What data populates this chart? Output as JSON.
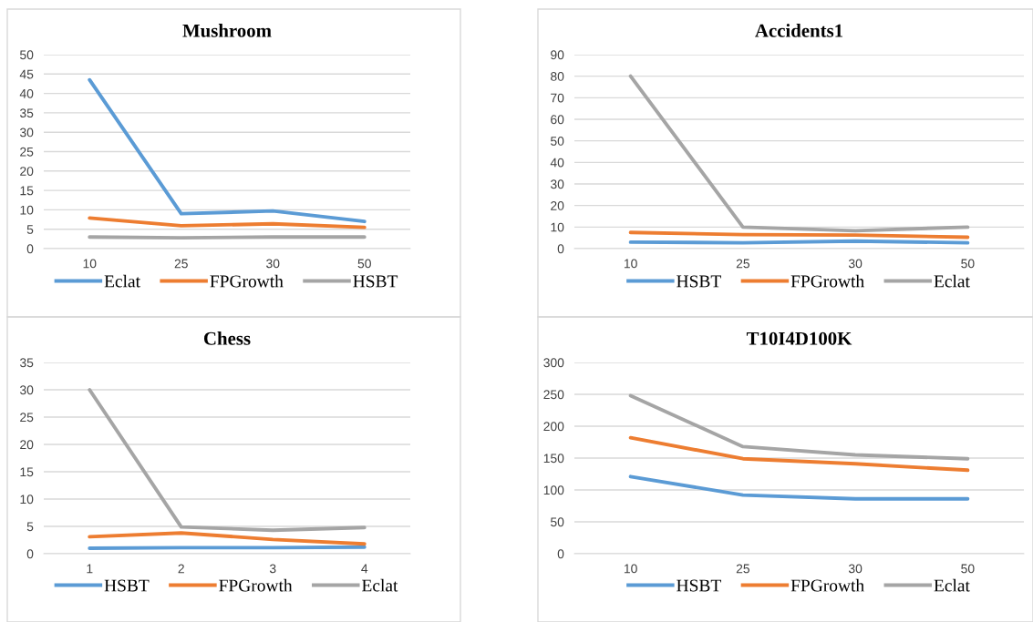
{
  "chart_data": [
    {
      "type": "line",
      "title": "Mushroom",
      "categories": [
        "10",
        "25",
        "30",
        "50"
      ],
      "ylim": [
        0,
        50
      ],
      "yticks": [
        0,
        5,
        10,
        15,
        20,
        25,
        30,
        35,
        40,
        45,
        50
      ],
      "grid": "y",
      "legend": "bottom",
      "marker": "none",
      "line_style": "solid",
      "series": [
        {
          "name": "Eclat",
          "color": "#5b9bd5",
          "values": [
            43.5,
            9,
            9.7,
            7
          ]
        },
        {
          "name": "FPGrowth",
          "color": "#ed7d31",
          "values": [
            7.9,
            5.9,
            6.4,
            5.5
          ]
        },
        {
          "name": "HSBT",
          "color": "#a5a5a5",
          "values": [
            3,
            2.8,
            3,
            3
          ]
        }
      ]
    },
    {
      "type": "line",
      "title": "Accidents1",
      "categories": [
        "10",
        "25",
        "30",
        "50"
      ],
      "ylim": [
        0,
        90
      ],
      "yticks": [
        0,
        10,
        20,
        30,
        40,
        50,
        60,
        70,
        80,
        90
      ],
      "grid": "y",
      "legend": "bottom",
      "marker": "none",
      "line_style": "solid",
      "series": [
        {
          "name": "HSBT",
          "color": "#5b9bd5",
          "values": [
            3,
            2.7,
            3.5,
            2.7
          ]
        },
        {
          "name": "FPGrowth",
          "color": "#ed7d31",
          "values": [
            7.5,
            6.5,
            6.3,
            5.3
          ]
        },
        {
          "name": "Eclat",
          "color": "#a5a5a5",
          "values": [
            80,
            10,
            8.3,
            10
          ]
        }
      ]
    },
    {
      "type": "line",
      "title": "Chess",
      "categories": [
        "1",
        "2",
        "3",
        "4"
      ],
      "ylim": [
        0,
        35
      ],
      "yticks": [
        0,
        5,
        10,
        15,
        20,
        25,
        30,
        35
      ],
      "grid": "y",
      "legend": "bottom",
      "marker": "none",
      "line_style": "solid",
      "series": [
        {
          "name": "HSBT",
          "color": "#5b9bd5",
          "values": [
            1,
            1.1,
            1.1,
            1.2
          ]
        },
        {
          "name": "FPGrowth",
          "color": "#ed7d31",
          "values": [
            3.1,
            3.8,
            2.6,
            1.8
          ]
        },
        {
          "name": "Eclat",
          "color": "#a5a5a5",
          "values": [
            30,
            4.9,
            4.3,
            4.8
          ]
        }
      ]
    },
    {
      "type": "line",
      "title": "T10I4D100K",
      "categories": [
        "10",
        "25",
        "30",
        "50"
      ],
      "ylim": [
        0,
        300
      ],
      "yticks": [
        0,
        50,
        100,
        150,
        200,
        250,
        300
      ],
      "grid": "y",
      "legend": "bottom",
      "marker": "none",
      "line_style": "solid",
      "series": [
        {
          "name": "HSBT",
          "color": "#5b9bd5",
          "values": [
            121,
            92,
            86,
            86
          ]
        },
        {
          "name": "FPGrowth",
          "color": "#ed7d31",
          "values": [
            182,
            149,
            141,
            131
          ]
        },
        {
          "name": "Eclat",
          "color": "#a5a5a5",
          "values": [
            248,
            168,
            155,
            149
          ]
        }
      ]
    }
  ]
}
